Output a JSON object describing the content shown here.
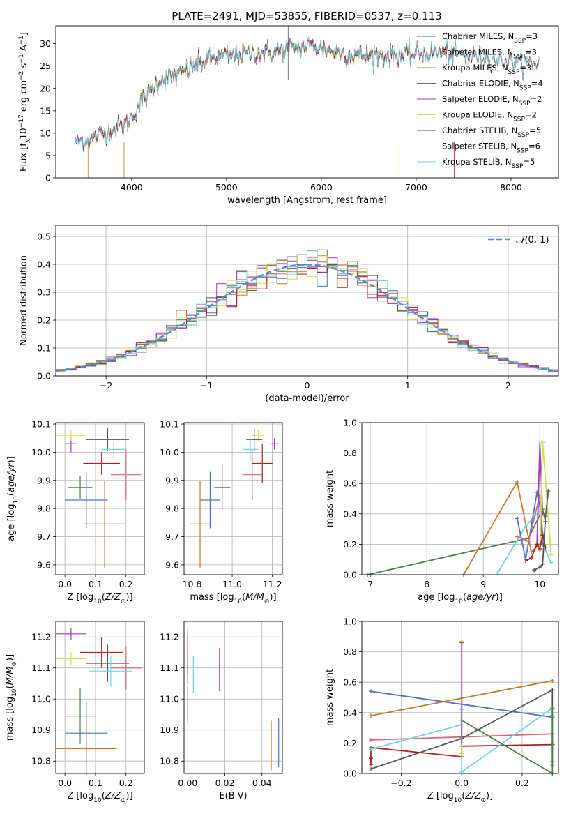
{
  "figure": {
    "title": "PLATE=2491, MJD=53855, FIBERID=0537, z=0.113"
  },
  "chart_data": [
    {
      "id": "spectrum",
      "type": "line",
      "xlabel": "wavelength [Angstrom, rest frame]",
      "ylabel": "Flux [f_λ 10^-17 erg cm^-2 s^-1 A^-1]",
      "xlim": [
        3200,
        8500
      ],
      "ylim": [
        0,
        34
      ],
      "xticks": [
        4000,
        5000,
        6000,
        7000,
        8000
      ],
      "yticks": [
        0,
        5,
        10,
        15,
        20,
        25,
        30
      ],
      "grid": false,
      "legend_position": "top-right",
      "continuum": {
        "x": [
          3400,
          3600,
          3800,
          3950,
          4100,
          4300,
          4500,
          4700,
          4900,
          5100,
          5300,
          5500,
          5700,
          5900,
          6100,
          6300,
          6500,
          6700,
          6900,
          7100,
          7300,
          7400,
          7700,
          8000,
          8300
        ],
        "y": [
          8,
          9,
          11,
          12,
          17,
          22,
          23,
          25.5,
          27,
          27.5,
          28,
          28,
          29,
          29.5,
          28.5,
          27.5,
          27.5,
          27.5,
          27.5,
          28,
          28,
          27.5,
          27,
          26,
          25.5
        ]
      },
      "series": [
        {
          "name": "Chabrier MILES",
          "nssp": "3",
          "color": "#4f72c2",
          "x_range": [
            3400,
            7400
          ]
        },
        {
          "name": "Salpeter MILES",
          "nssp": "3",
          "color": "#d36b7a",
          "x_range": [
            3540,
            7400
          ]
        },
        {
          "name": "Kroupa MILES",
          "nssp": "3",
          "color": "#c47a28",
          "x_range": [
            3540,
            7400
          ]
        },
        {
          "name": "Chabrier ELODIE",
          "nssp": "4",
          "color": "#4e7d4e",
          "x_range": [
            3900,
            6800
          ]
        },
        {
          "name": "Salpeter ELODIE",
          "nssp": "2",
          "color": "#a23bc7",
          "x_range": [
            3900,
            6800
          ]
        },
        {
          "name": "Kroupa ELODIE",
          "nssp": "2",
          "color": "#cfe04a",
          "x_range": [
            3900,
            6800
          ]
        },
        {
          "name": "Chabrier STELIB",
          "nssp": "5",
          "color": "#555555",
          "x_range": [
            3400,
            8300
          ]
        },
        {
          "name": "Salpeter STELIB",
          "nssp": "6",
          "color": "#b21d1d",
          "x_range": [
            3400,
            8300
          ]
        },
        {
          "name": "Kroupa STELIB",
          "nssp": "5",
          "color": "#6fd3e0",
          "x_range": [
            3400,
            8300
          ]
        }
      ]
    },
    {
      "id": "residuals",
      "type": "histogram",
      "xlabel": "(data-model)/error",
      "ylabel": "Normed distribution",
      "xlim": [
        -2.5,
        2.5
      ],
      "ylim": [
        0,
        0.54
      ],
      "xticks": [
        -2,
        -1,
        0,
        1,
        2
      ],
      "yticks": [
        0.0,
        0.1,
        0.2,
        0.3,
        0.4,
        0.5
      ],
      "grid": true,
      "legend_position": "top-right",
      "reference": {
        "name": "N(0,1)",
        "label_prefix": "𝒩",
        "label_suffix": "(0, 1)",
        "mu": 0,
        "sigma": 1,
        "color": "#5b8bd6"
      },
      "bin_width": 0.1,
      "bin_start": -2.5,
      "series_colors": [
        "#4f72c2",
        "#d36b7a",
        "#c47a28",
        "#4e7d4e",
        "#a23bc7",
        "#cfe04a",
        "#555555",
        "#b21d1d",
        "#6fd3e0"
      ]
    },
    {
      "id": "age_vs_Z",
      "type": "scatter",
      "xlabel": "Z [log10(Z/Z⊙)]",
      "ylabel": "age [log10(age/yr)]",
      "xlim": [
        -0.03,
        0.26
      ],
      "ylim": [
        9.565,
        10.105
      ],
      "xticks": [
        0.0,
        0.1,
        0.2
      ],
      "yticks": [
        9.6,
        9.7,
        9.8,
        9.9,
        10.0,
        10.1
      ],
      "grid": true,
      "points": [
        {
          "x": 0.07,
          "y": 9.83,
          "xerr": 0.07,
          "yerr": 0.1,
          "color": "#4f72c2"
        },
        {
          "x": 0.2,
          "y": 9.92,
          "xerr": 0.05,
          "yerr": 0.09,
          "color": "#d36b7a"
        },
        {
          "x": 0.13,
          "y": 9.745,
          "xerr": 0.07,
          "yerr": 0.155,
          "color": "#c47a28"
        },
        {
          "x": 0.05,
          "y": 9.875,
          "xerr": 0.04,
          "yerr": 0.04,
          "color": "#4e7d4e"
        },
        {
          "x": 0.02,
          "y": 10.03,
          "xerr": 0.02,
          "yerr": 0.03,
          "color": "#a23bc7"
        },
        {
          "x": 0.02,
          "y": 10.06,
          "xerr": 0.05,
          "yerr": 0.02,
          "color": "#cfe04a"
        },
        {
          "x": 0.14,
          "y": 10.045,
          "xerr": 0.07,
          "yerr": 0.04,
          "color": "#555555"
        },
        {
          "x": 0.12,
          "y": 9.96,
          "xerr": 0.06,
          "yerr": 0.04,
          "color": "#b21d1d"
        },
        {
          "x": 0.16,
          "y": 10.01,
          "xerr": 0.04,
          "yerr": 0.03,
          "color": "#6fd3e0"
        }
      ]
    },
    {
      "id": "age_vs_mass",
      "type": "scatter",
      "xlabel": "mass [log10(M/M⊙)]",
      "ylabel": "",
      "xlim": [
        10.76,
        11.25
      ],
      "ylim": [
        9.565,
        10.105
      ],
      "xticks": [
        10.8,
        11.0,
        11.2
      ],
      "yticks": [
        9.6,
        9.7,
        9.8,
        9.9,
        10.0,
        10.1
      ],
      "grid": true,
      "points": [
        {
          "x": 10.89,
          "y": 9.83,
          "xerr": 0.05,
          "yerr": 0.1,
          "color": "#4f72c2"
        },
        {
          "x": 11.1,
          "y": 9.92,
          "xerr": 0.05,
          "yerr": 0.09,
          "color": "#d36b7a"
        },
        {
          "x": 10.84,
          "y": 9.745,
          "xerr": 0.05,
          "yerr": 0.155,
          "color": "#c47a28"
        },
        {
          "x": 10.95,
          "y": 9.875,
          "xerr": 0.04,
          "yerr": 0.08,
          "color": "#4e7d4e"
        },
        {
          "x": 11.21,
          "y": 10.03,
          "xerr": 0.02,
          "yerr": 0.02,
          "color": "#a23bc7"
        },
        {
          "x": 11.13,
          "y": 10.06,
          "xerr": 0.03,
          "yerr": 0.02,
          "color": "#cfe04a"
        },
        {
          "x": 11.11,
          "y": 10.045,
          "xerr": 0.04,
          "yerr": 0.04,
          "color": "#555555"
        },
        {
          "x": 11.15,
          "y": 9.96,
          "xerr": 0.05,
          "yerr": 0.07,
          "color": "#b21d1d"
        },
        {
          "x": 11.09,
          "y": 10.01,
          "xerr": 0.04,
          "yerr": 0.04,
          "color": "#6fd3e0"
        }
      ]
    },
    {
      "id": "weight_vs_age",
      "type": "line",
      "xlabel": "age [log10(age/yr)]",
      "ylabel": "mass weight",
      "xlim": [
        6.85,
        10.33
      ],
      "ylim": [
        0,
        1.0
      ],
      "xticks": [
        7,
        8,
        9,
        10
      ],
      "yticks": [
        0.0,
        0.2,
        0.4,
        0.6,
        0.8,
        1.0
      ],
      "grid": true,
      "series": [
        {
          "color": "#4e7d4e",
          "x": [
            6.95,
            9.8,
            10.05,
            10.1
          ],
          "y": [
            0.0,
            0.24,
            0.43,
            0.35
          ]
        },
        {
          "color": "#c47a28",
          "x": [
            8.65,
            9.6,
            9.85,
            10.0
          ],
          "y": [
            0.0,
            0.61,
            0.15,
            0.2
          ]
        },
        {
          "color": "#6fd3e0",
          "x": [
            9.25,
            9.75,
            10.0,
            10.1,
            10.2
          ],
          "y": [
            0.01,
            0.32,
            0.42,
            0.16,
            0.08
          ]
        },
        {
          "color": "#4f72c2",
          "x": [
            9.6,
            9.75,
            9.95,
            10.0,
            10.05
          ],
          "y": [
            0.37,
            0.1,
            0.54,
            0.45,
            0.2
          ]
        },
        {
          "color": "#d36b7a",
          "x": [
            9.6,
            9.8,
            10.0,
            10.05
          ],
          "y": [
            0.25,
            0.22,
            0.52,
            0.26
          ]
        },
        {
          "color": "#a23bc7",
          "x": [
            9.95,
            10.0,
            10.05
          ],
          "y": [
            0.2,
            0.86,
            0.4
          ]
        },
        {
          "color": "#cfe04a",
          "x": [
            10.0,
            10.05,
            10.2
          ],
          "y": [
            0.16,
            0.87,
            0.13
          ]
        },
        {
          "color": "#b21d1d",
          "x": [
            9.75,
            9.85,
            9.95,
            10.0,
            10.05,
            10.1
          ],
          "y": [
            0.09,
            0.11,
            0.2,
            0.17,
            0.26,
            0.18
          ]
        },
        {
          "color": "#555555",
          "x": [
            9.9,
            10.0,
            10.05,
            10.1,
            10.15
          ],
          "y": [
            0.03,
            0.05,
            0.07,
            0.38,
            0.55
          ]
        }
      ]
    },
    {
      "id": "mass_vs_Z",
      "type": "scatter",
      "xlabel": "Z [log10(Z/Z⊙)]",
      "ylabel": "mass [log10(M/M⊙)]",
      "xlim": [
        -0.03,
        0.26
      ],
      "ylim": [
        10.76,
        11.25
      ],
      "xticks": [
        0.0,
        0.1,
        0.2
      ],
      "yticks": [
        10.8,
        10.9,
        11.0,
        11.1,
        11.2
      ],
      "grid": true,
      "points": [
        {
          "x": 0.07,
          "y": 10.89,
          "xerr": 0.07,
          "yerr": 0.1,
          "color": "#4f72c2"
        },
        {
          "x": 0.2,
          "y": 11.1,
          "xerr": 0.05,
          "yerr": 0.07,
          "color": "#d36b7a"
        },
        {
          "x": 0.07,
          "y": 10.84,
          "xerr": 0.1,
          "yerr": 0.09,
          "color": "#c47a28"
        },
        {
          "x": 0.05,
          "y": 10.945,
          "xerr": 0.05,
          "yerr": 0.09,
          "color": "#4e7d4e"
        },
        {
          "x": 0.02,
          "y": 11.21,
          "xerr": 0.05,
          "yerr": 0.02,
          "color": "#a23bc7"
        },
        {
          "x": 0.02,
          "y": 11.13,
          "xerr": 0.05,
          "yerr": 0.02,
          "color": "#cfe04a"
        },
        {
          "x": 0.14,
          "y": 11.115,
          "xerr": 0.07,
          "yerr": 0.06,
          "color": "#555555"
        },
        {
          "x": 0.12,
          "y": 11.15,
          "xerr": 0.07,
          "yerr": 0.05,
          "color": "#b21d1d"
        },
        {
          "x": 0.15,
          "y": 11.09,
          "xerr": 0.07,
          "yerr": 0.05,
          "color": "#6fd3e0"
        }
      ]
    },
    {
      "id": "mass_vs_ebv",
      "type": "scatter",
      "xlabel": "E(B-V)",
      "ylabel": "",
      "xlim": [
        -0.002,
        0.051
      ],
      "ylim": [
        10.76,
        11.25
      ],
      "xticks": [
        0.0,
        0.02,
        0.04
      ],
      "yticks": [
        10.8,
        10.9,
        11.0,
        11.1,
        11.2
      ],
      "grid": true,
      "points": [
        {
          "x": 0.049,
          "y": 10.86,
          "xerr": 0,
          "yerr": 0.08,
          "color": "#4f72c2"
        },
        {
          "x": 0.017,
          "y": 11.095,
          "xerr": 0,
          "yerr": 0.07,
          "color": "#d36b7a"
        },
        {
          "x": 0.045,
          "y": 10.85,
          "xerr": 0,
          "yerr": 0.08,
          "color": "#c47a28"
        },
        {
          "x": 0.0,
          "y": 10.98,
          "xerr": 0,
          "yerr": 0.06,
          "color": "#4e7d4e"
        },
        {
          "x": 0.0,
          "y": 11.19,
          "xerr": 0,
          "yerr": 0.04,
          "color": "#a23bc7"
        },
        {
          "x": 0.0,
          "y": 11.12,
          "xerr": 0,
          "yerr": 0.04,
          "color": "#cfe04a"
        },
        {
          "x": 0.0,
          "y": 11.1,
          "xerr": 0,
          "yerr": 0.05,
          "color": "#555555"
        },
        {
          "x": 0.0,
          "y": 11.14,
          "xerr": 0,
          "yerr": 0.06,
          "color": "#b21d1d"
        },
        {
          "x": 0.003,
          "y": 11.08,
          "xerr": 0,
          "yerr": 0.06,
          "color": "#6fd3e0"
        }
      ]
    },
    {
      "id": "weight_vs_Z",
      "type": "line",
      "xlabel": "Z [log10(Z/Z⊙)]",
      "ylabel": "mass weight",
      "xlim": [
        -0.33,
        0.32
      ],
      "ylim": [
        0,
        1.0
      ],
      "xticks": [
        -0.2,
        0.0,
        0.2
      ],
      "yticks": [
        0.0,
        0.2,
        0.4,
        0.6,
        0.8,
        1.0
      ],
      "grid": true,
      "series": [
        {
          "color": "#4f72c2",
          "x": [
            -0.3,
            0.3
          ],
          "y": [
            0.54,
            0.37
          ]
        },
        {
          "color": "#c47a28",
          "x": [
            -0.3,
            0.3
          ],
          "y": [
            0.38,
            0.61
          ]
        },
        {
          "color": "#d36b7a",
          "x": [
            -0.3,
            0.3
          ],
          "y": [
            0.22,
            0.26
          ]
        },
        {
          "color": "#b21d1d",
          "x": [
            -0.3,
            -0.3,
            -0.3,
            0.0,
            0.0,
            0.3,
            0.3,
            0.3
          ],
          "y": [
            0.06,
            0.1,
            0.17,
            0.11,
            0.18,
            0.19,
            0.26,
            0.19
          ]
        },
        {
          "color": "#555555",
          "x": [
            -0.3,
            0.0,
            0.3,
            0.3,
            0.3
          ],
          "y": [
            0.03,
            0.23,
            0.55,
            0.38,
            0.05
          ]
        },
        {
          "color": "#6fd3e0",
          "x": [
            -0.3,
            0.0,
            0.0,
            0.0,
            0.3,
            0.3,
            0.3
          ],
          "y": [
            0.16,
            0.32,
            0.42,
            0.01,
            0.43,
            0.08,
            0.16
          ]
        },
        {
          "color": "#4e7d4e",
          "x": [
            0.0,
            0.0,
            0.3,
            0.3
          ],
          "y": [
            0.24,
            0.35,
            0.0,
            0.43
          ]
        },
        {
          "color": "#cfe04a",
          "x": [
            0.0,
            0.0,
            0.0
          ],
          "y": [
            0.13,
            0.87,
            0.35
          ]
        },
        {
          "color": "#a23bc7",
          "x": [
            0.0,
            0.0
          ],
          "y": [
            0.2,
            0.86
          ]
        }
      ]
    }
  ]
}
